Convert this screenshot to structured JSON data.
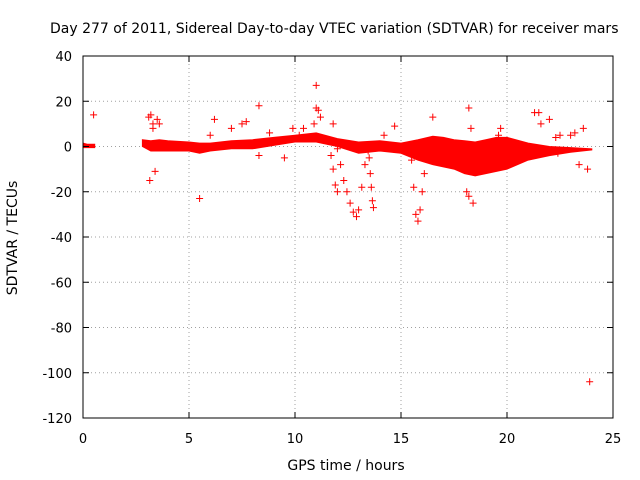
{
  "chart_data": {
    "type": "scatter",
    "title": "Day 277 of 2011, Sidereal Day-to-day VTEC variation (SDTVAR) for receiver mars",
    "xlabel": "GPS time / hours",
    "ylabel": "SDTVAR / TECUs",
    "xlim": [
      0,
      25
    ],
    "ylim": [
      -120,
      40
    ],
    "xticks": [
      0,
      5,
      10,
      15,
      20,
      25
    ],
    "yticks": [
      -120,
      -100,
      -80,
      -60,
      -40,
      -20,
      0,
      20,
      40
    ],
    "grid": true,
    "marker": "+",
    "color": "#ff0000",
    "dense_band": {
      "x": [
        0.0,
        0.2,
        0.4,
        0.55,
        2.8,
        3.2,
        3.6,
        4.0,
        5.0,
        5.5,
        6.0,
        7.0,
        8.0,
        9.0,
        10.0,
        11.0,
        12.0,
        13.0,
        14.0,
        15.0,
        15.8,
        16.5,
        17.0,
        17.5,
        18.0,
        18.5,
        19.0,
        19.5,
        20.0,
        21.0,
        22.0,
        23.0,
        24.0
      ],
      "lower": [
        -0.5,
        -0.5,
        -0.5,
        -0.5,
        0.0,
        -2.0,
        -2.0,
        -2.0,
        -2.0,
        -3.0,
        -2.0,
        -1.0,
        -1.0,
        0.5,
        2.0,
        2.0,
        0.0,
        -3.0,
        -2.0,
        -3.0,
        -6.0,
        -8.0,
        -9.0,
        -10.0,
        -12.0,
        -13.0,
        -12.0,
        -11.0,
        -10.0,
        -6.0,
        -4.0,
        -2.5,
        -1.5
      ],
      "upper": [
        1.5,
        1.0,
        1.0,
        1.0,
        3.0,
        2.5,
        3.0,
        2.5,
        2.0,
        1.5,
        1.5,
        2.5,
        3.0,
        4.0,
        5.0,
        6.0,
        3.5,
        2.0,
        2.5,
        1.5,
        3.0,
        4.5,
        4.0,
        3.0,
        2.5,
        2.0,
        3.0,
        4.0,
        4.0,
        1.5,
        0.0,
        -0.5,
        -1.0
      ],
      "segments": [
        [
          0.0,
          0.55
        ],
        [
          2.8,
          24.0
        ]
      ]
    },
    "spike_series": [
      {
        "x": [
          12.0,
          12.15,
          12.3,
          12.45,
          12.6,
          12.75,
          12.9,
          13.0,
          13.15,
          13.3,
          13.45
        ],
        "y": [
          -1,
          -8,
          -15,
          -20,
          -25,
          -29,
          -31,
          -28,
          -18,
          -8,
          -2
        ]
      },
      {
        "x": [
          13.5,
          13.55,
          13.6,
          13.65,
          13.7
        ],
        "y": [
          -5,
          -12,
          -18,
          -24,
          -27
        ]
      },
      {
        "x": [
          15.6,
          15.7,
          15.8,
          15.9,
          16.0,
          16.1,
          16.25
        ],
        "y": [
          -18,
          -30,
          -33,
          -28,
          -20,
          -12,
          -5
        ]
      },
      {
        "x": [
          11.7,
          11.8,
          11.9,
          12.0
        ],
        "y": [
          -4,
          -10,
          -17,
          -20
        ]
      }
    ],
    "outliers": {
      "x": [
        0.5,
        3.1,
        3.2,
        3.3,
        3.4,
        3.15,
        3.3,
        3.5,
        3.6,
        5.5,
        6.0,
        6.2,
        7.0,
        7.5,
        7.7,
        8.3,
        8.3,
        8.8,
        9.5,
        9.9,
        10.2,
        10.4,
        10.9,
        11.0,
        11.1,
        11.0,
        11.2,
        11.8,
        12.0,
        14.2,
        14.7,
        15.5,
        16.5,
        18.2,
        18.3,
        18.4,
        18.1,
        18.2,
        19.6,
        19.7,
        21.0,
        21.3,
        21.5,
        21.6,
        22.0,
        22.3,
        22.5,
        22.4,
        23.0,
        23.2,
        23.4,
        23.6,
        23.8,
        23.9
      ],
      "y": [
        14,
        13,
        14,
        10,
        -11,
        -15,
        8,
        12,
        10,
        -23,
        5,
        12,
        8,
        10,
        11,
        18,
        -4,
        6,
        -5,
        8,
        5,
        8,
        10,
        27,
        16,
        17,
        13,
        10,
        2,
        5,
        9,
        -6,
        13,
        17,
        8,
        -25,
        -20,
        -22,
        5,
        8,
        -3,
        15,
        15,
        10,
        12,
        4,
        5,
        -3,
        5,
        6,
        -8,
        8,
        -10,
        -104
      ]
    }
  }
}
